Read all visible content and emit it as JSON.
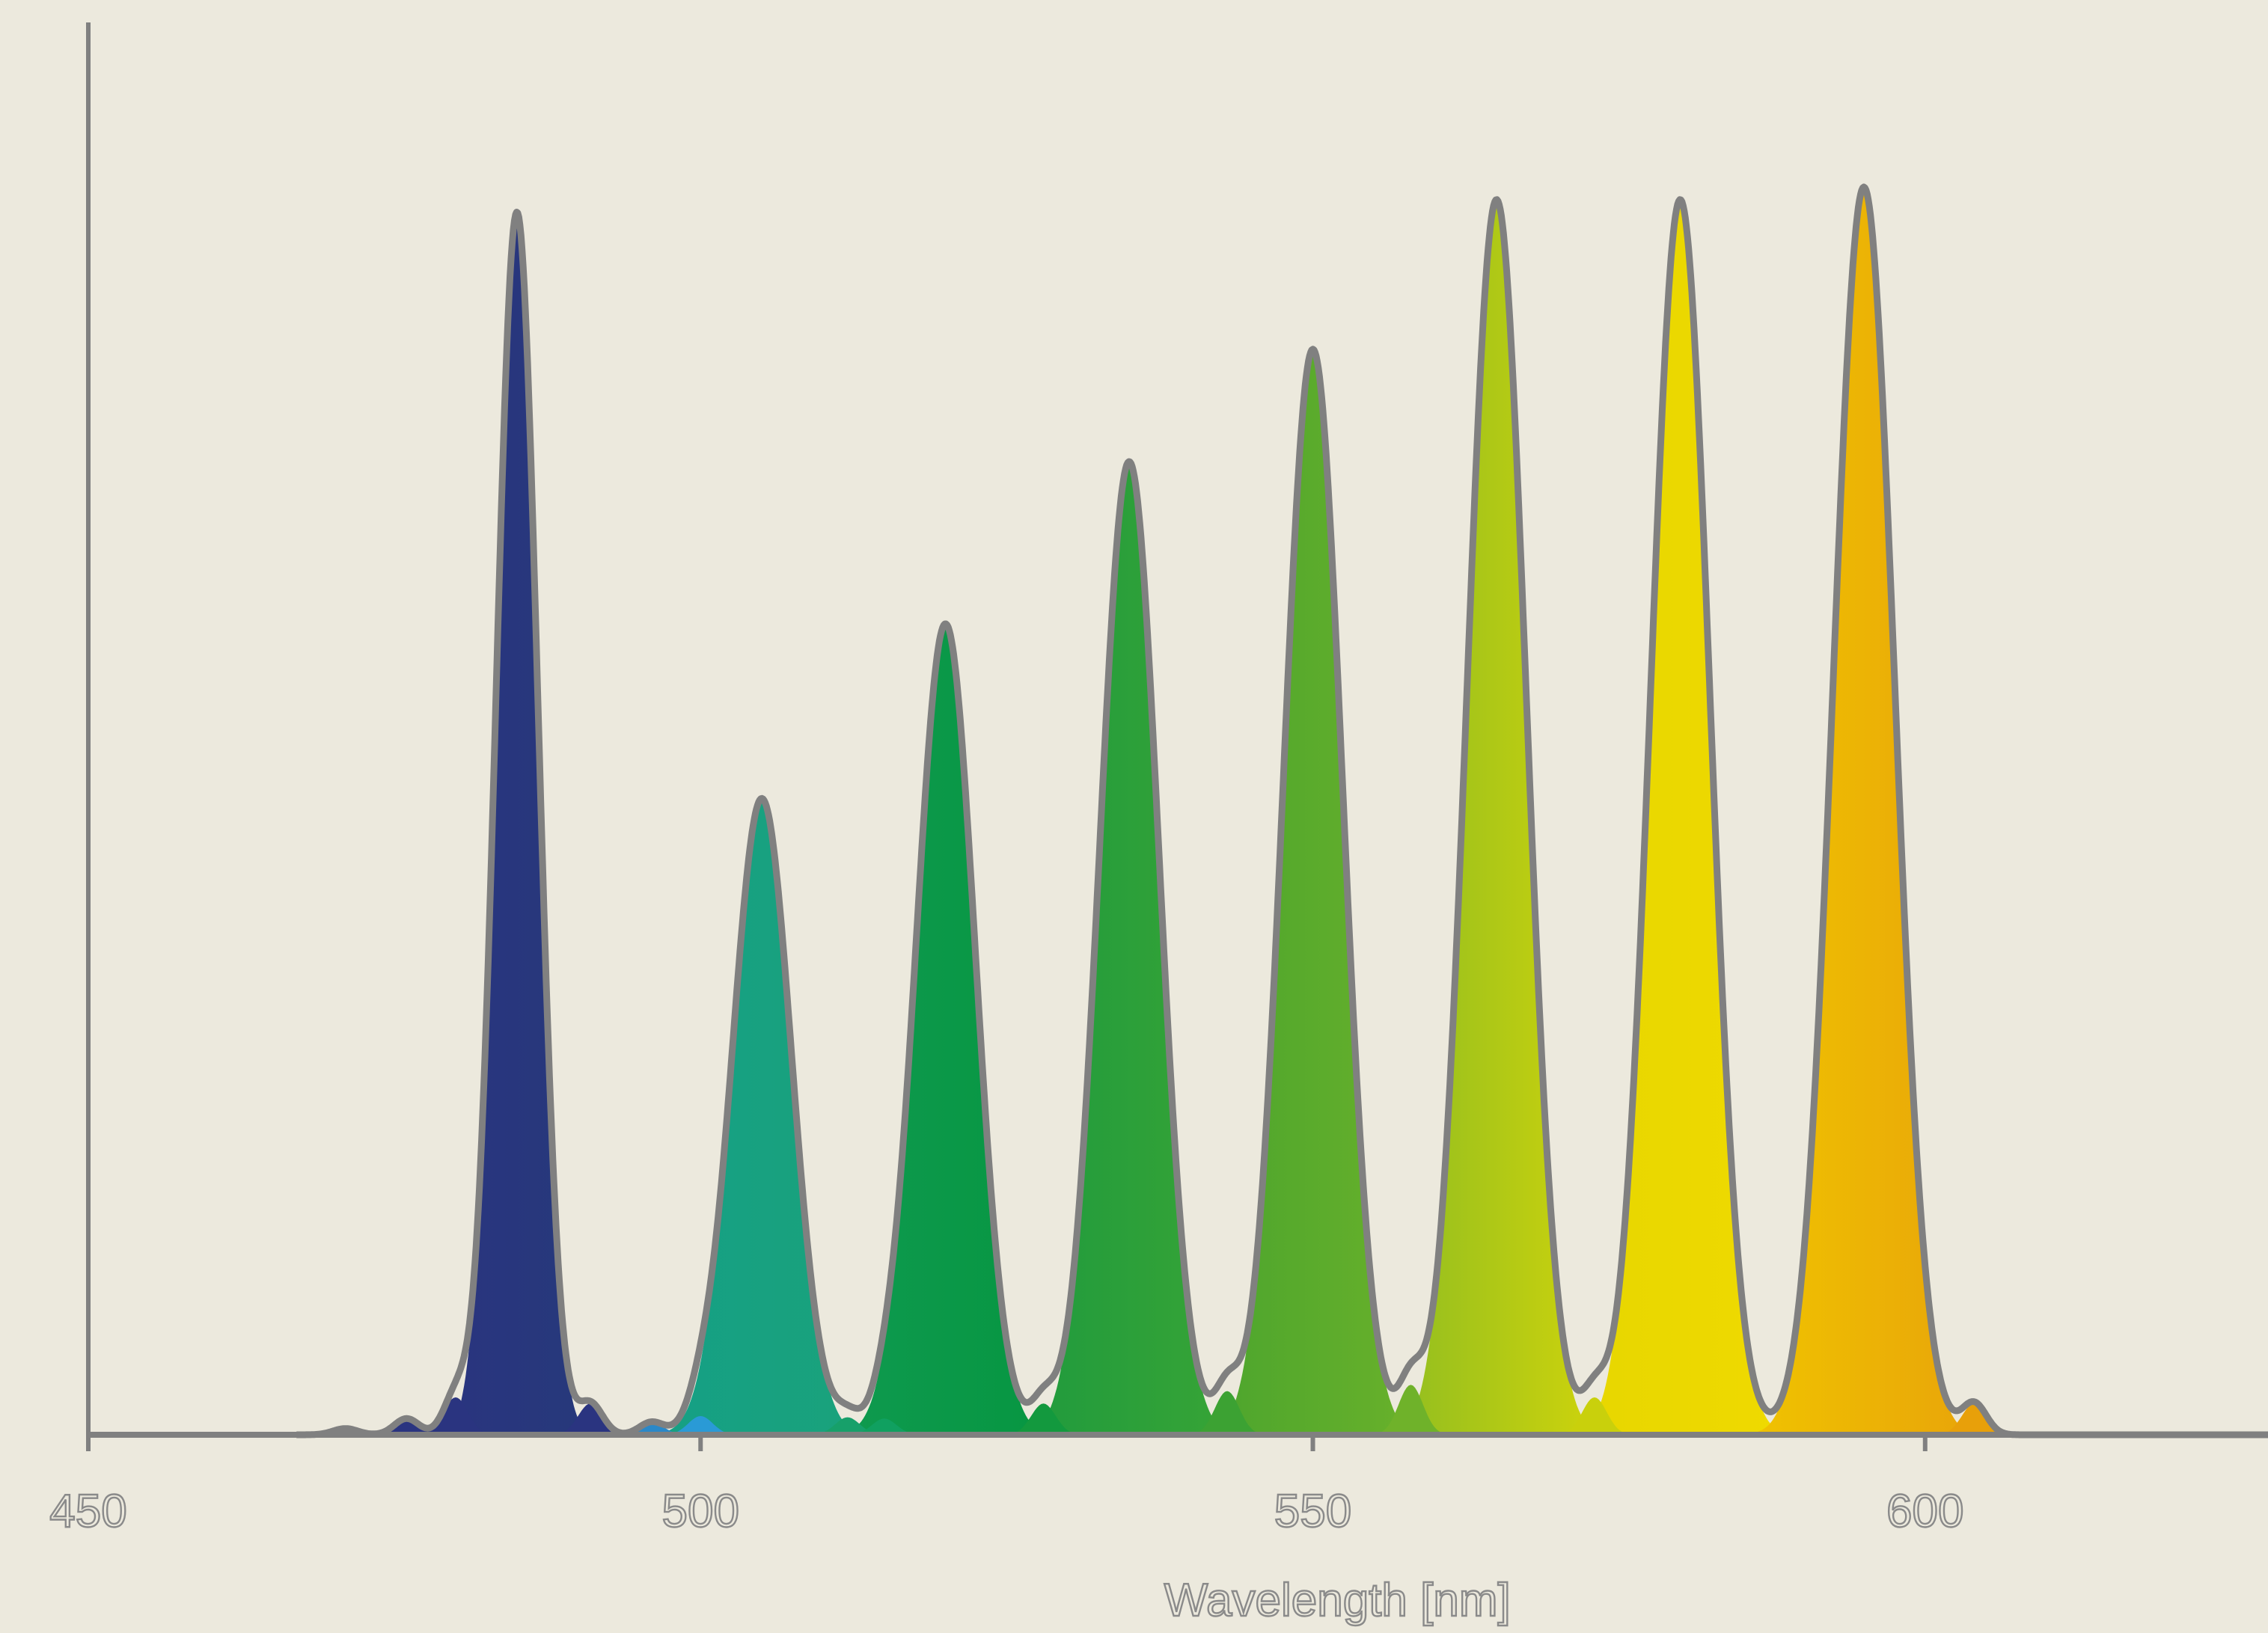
{
  "chart_data": {
    "type": "area",
    "title": "",
    "xlabel": "Wavelength [nm]",
    "ylabel": "",
    "xlim": [
      450,
      628
    ],
    "ylim": [
      0,
      1
    ],
    "x_ticks": [
      450,
      500,
      550,
      600
    ],
    "x_tick_labels": [
      "450",
      "500",
      "550",
      "600"
    ],
    "grid": false,
    "legend": "none",
    "outline_color": "#808080",
    "axis_color": "#808080",
    "background": "#ece9dd",
    "series": [
      {
        "peak_nm": 485,
        "height": 0.98,
        "width_nm": 1.7,
        "color_start": "#2a3480",
        "color_end": "#26397a"
      },
      {
        "peak_nm": 505,
        "height": 0.51,
        "width_nm": 2.4,
        "color_start": "#15a086",
        "color_end": "#1aa27a"
      },
      {
        "peak_nm": 520,
        "height": 0.65,
        "width_nm": 2.4,
        "color_start": "#0f9a50",
        "color_end": "#069640"
      },
      {
        "peak_nm": 535,
        "height": 0.78,
        "width_nm": 2.4,
        "color_start": "#1e9a3e",
        "color_end": "#39a535"
      },
      {
        "peak_nm": 550,
        "height": 0.87,
        "width_nm": 2.4,
        "color_start": "#4aa42e",
        "color_end": "#6bb22a"
      },
      {
        "peak_nm": 565,
        "height": 0.99,
        "width_nm": 2.4,
        "color_start": "#8cbc22",
        "color_end": "#d3d50a"
      },
      {
        "peak_nm": 580,
        "height": 0.99,
        "width_nm": 2.4,
        "color_start": "#e6d600",
        "color_end": "#f0da00"
      },
      {
        "peak_nm": 595,
        "height": 1.0,
        "width_nm": 2.5,
        "color_start": "#f0c400",
        "color_end": "#e8a30a"
      }
    ],
    "minor_bumps": [
      {
        "x": 471,
        "height": 0.005,
        "color": "#2a3480"
      },
      {
        "x": 476,
        "height": 0.013,
        "color": "#2a3480"
      },
      {
        "x": 480,
        "height": 0.03,
        "color": "#2a3480"
      },
      {
        "x": 491,
        "height": 0.025,
        "color": "#2a3480"
      },
      {
        "x": 496,
        "height": 0.01,
        "color": "#2a88c8"
      },
      {
        "x": 500,
        "height": 0.015,
        "color": "#2a9ad6"
      },
      {
        "x": 512,
        "height": 0.014,
        "color": "#17a06a"
      },
      {
        "x": 515,
        "height": 0.013,
        "color": "#10a060"
      },
      {
        "x": 528,
        "height": 0.025,
        "color": "#13993e"
      },
      {
        "x": 543,
        "height": 0.035,
        "color": "#3ca233"
      },
      {
        "x": 558,
        "height": 0.04,
        "color": "#6fb22a"
      },
      {
        "x": 573,
        "height": 0.03,
        "color": "#c9d00c"
      },
      {
        "x": 604,
        "height": 0.025,
        "color": "#e8a00a"
      }
    ]
  }
}
